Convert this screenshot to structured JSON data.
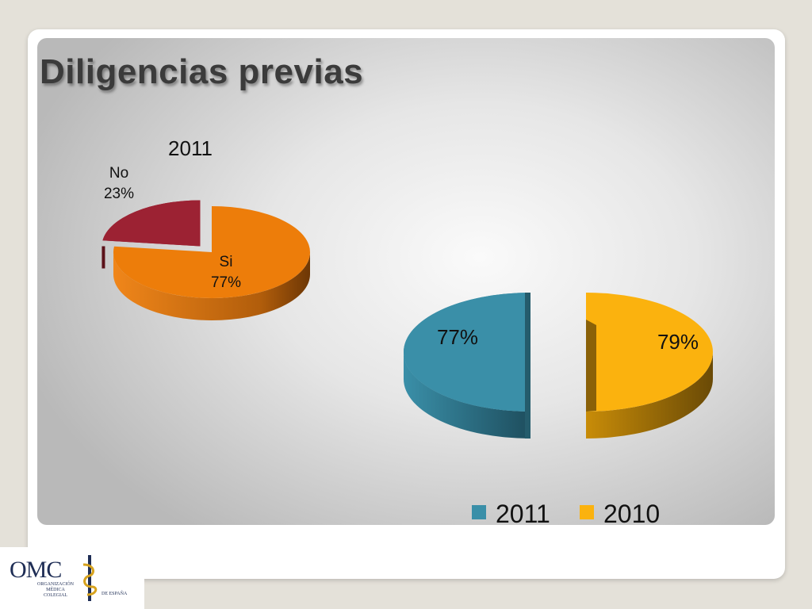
{
  "slide": {
    "title": "Diligencias previas"
  },
  "logo": {
    "main": "OMC",
    "lines": [
      "ORGANIZACIÓN",
      "MÉDICA",
      "COLEGIAL"
    ],
    "tail": "DE ESPAÑA"
  },
  "chart_data": [
    {
      "type": "pie",
      "title": "2011",
      "categories": [
        "Si",
        "No"
      ],
      "values": [
        77,
        23
      ],
      "labels": [
        "77%",
        "23%"
      ],
      "colors": [
        "#ed7d0a",
        "#9c2233"
      ],
      "style": "3d-exploded"
    },
    {
      "type": "pie",
      "title": "",
      "categories": [
        "2011",
        "2010"
      ],
      "values": [
        77,
        79
      ],
      "labels": [
        "77%",
        "79%"
      ],
      "colors": [
        "#3a8fa8",
        "#fbb20e"
      ],
      "legend": [
        "2011",
        "2010"
      ],
      "legend_position": "bottom-right",
      "style": "3d-exploded"
    }
  ]
}
